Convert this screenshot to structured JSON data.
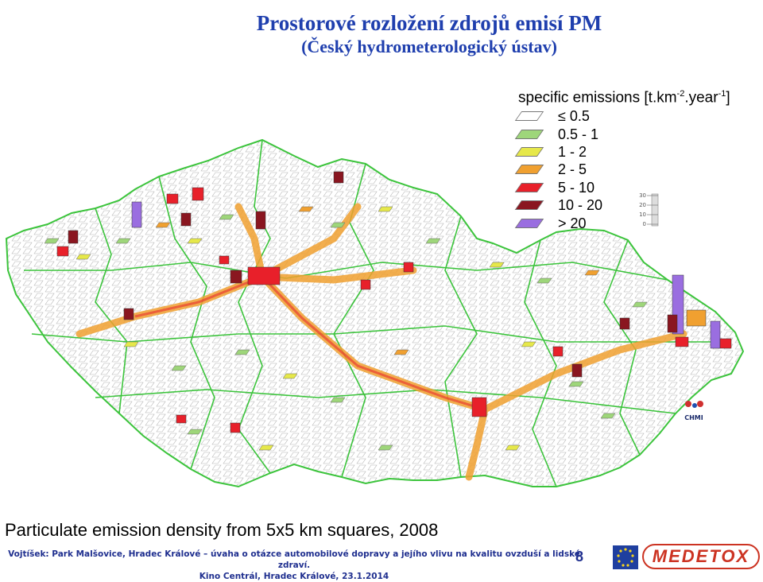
{
  "header": {
    "title": "Prostorové rozložení zdrojů emisí PM",
    "subtitle": "(Český hydrometerologický ústav)"
  },
  "legend": {
    "title_prefix": "specific emissions [t.km",
    "title_sup1": "-2",
    "title_mid": ".year",
    "title_sup2": "-1",
    "title_suffix": "]",
    "items": [
      {
        "label": "≤ 0.5",
        "color": "#ffffff"
      },
      {
        "label": "0.5 - 1",
        "color": "#9ed67a"
      },
      {
        "label": "1 - 2",
        "color": "#e6e84a"
      },
      {
        "label": "2 - 5",
        "color": "#f0a030"
      },
      {
        "label": "5 - 10",
        "color": "#e8202a"
      },
      {
        "label": "10 - 20",
        "color": "#8a1620"
      },
      {
        "label": "> 20",
        "color": "#9a6ee0"
      }
    ]
  },
  "scale_ticks": [
    "30",
    "20",
    "10",
    "0"
  ],
  "map": {
    "caption": "Particulate emission density from 5x5 km squares, 2008",
    "logo_text": "CHMI"
  },
  "footer": {
    "credit_line1": "Vojtíšek: Park Malšovice, Hradec Králové – úvaha o otázce automobilové dopravy a jejího vlivu na kvalitu ovzduší a lidské zdraví.",
    "credit_line2": "Kino Centrál, Hradec Králové, 23.1.2014",
    "page_number": "8",
    "sponsor_logo_text": "MEDETOX"
  },
  "colors": {
    "title_blue": "#1f3fae",
    "district_border": "#3cc43c",
    "road_orange": "#f0a030"
  }
}
